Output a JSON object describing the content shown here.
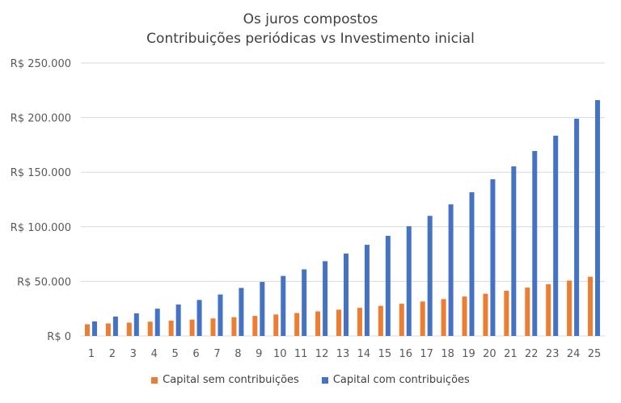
{
  "chart_data": {
    "type": "bar",
    "title": "Os juros compostos",
    "subtitle": "Contribuições periódicas vs Investimento inicial",
    "categories": [
      "1",
      "2",
      "3",
      "4",
      "5",
      "6",
      "7",
      "8",
      "9",
      "10",
      "11",
      "12",
      "13",
      "14",
      "15",
      "16",
      "17",
      "18",
      "19",
      "20",
      "21",
      "22",
      "23",
      "24",
      "25"
    ],
    "series": [
      {
        "name": "Capital sem contribuições",
        "color": "#ED7D31",
        "values": [
          10700,
          11449,
          12250,
          13108,
          14026,
          15007,
          16058,
          17182,
          18385,
          19672,
          21049,
          22522,
          24098,
          25785,
          27590,
          29522,
          31588,
          33799,
          36165,
          38697,
          41406,
          44304,
          47405,
          50724,
          54274
        ]
      },
      {
        "name": "Capital com contribuições",
        "color": "#4472C4",
        "values": [
          13300,
          17800,
          20700,
          25000,
          28800,
          33000,
          38000,
          44000,
          49500,
          55000,
          61000,
          68500,
          75500,
          83500,
          91700,
          100500,
          110000,
          120500,
          131600,
          143500,
          155300,
          169400,
          183400,
          199000,
          216000
        ]
      }
    ],
    "ylim": [
      0,
      250000
    ],
    "yticks": [
      "R$ 0",
      "R$ 50.000",
      "R$ 100.000",
      "R$ 150.000",
      "R$ 200.000",
      "R$ 250.000"
    ],
    "grid": true,
    "legend": "bottom"
  }
}
